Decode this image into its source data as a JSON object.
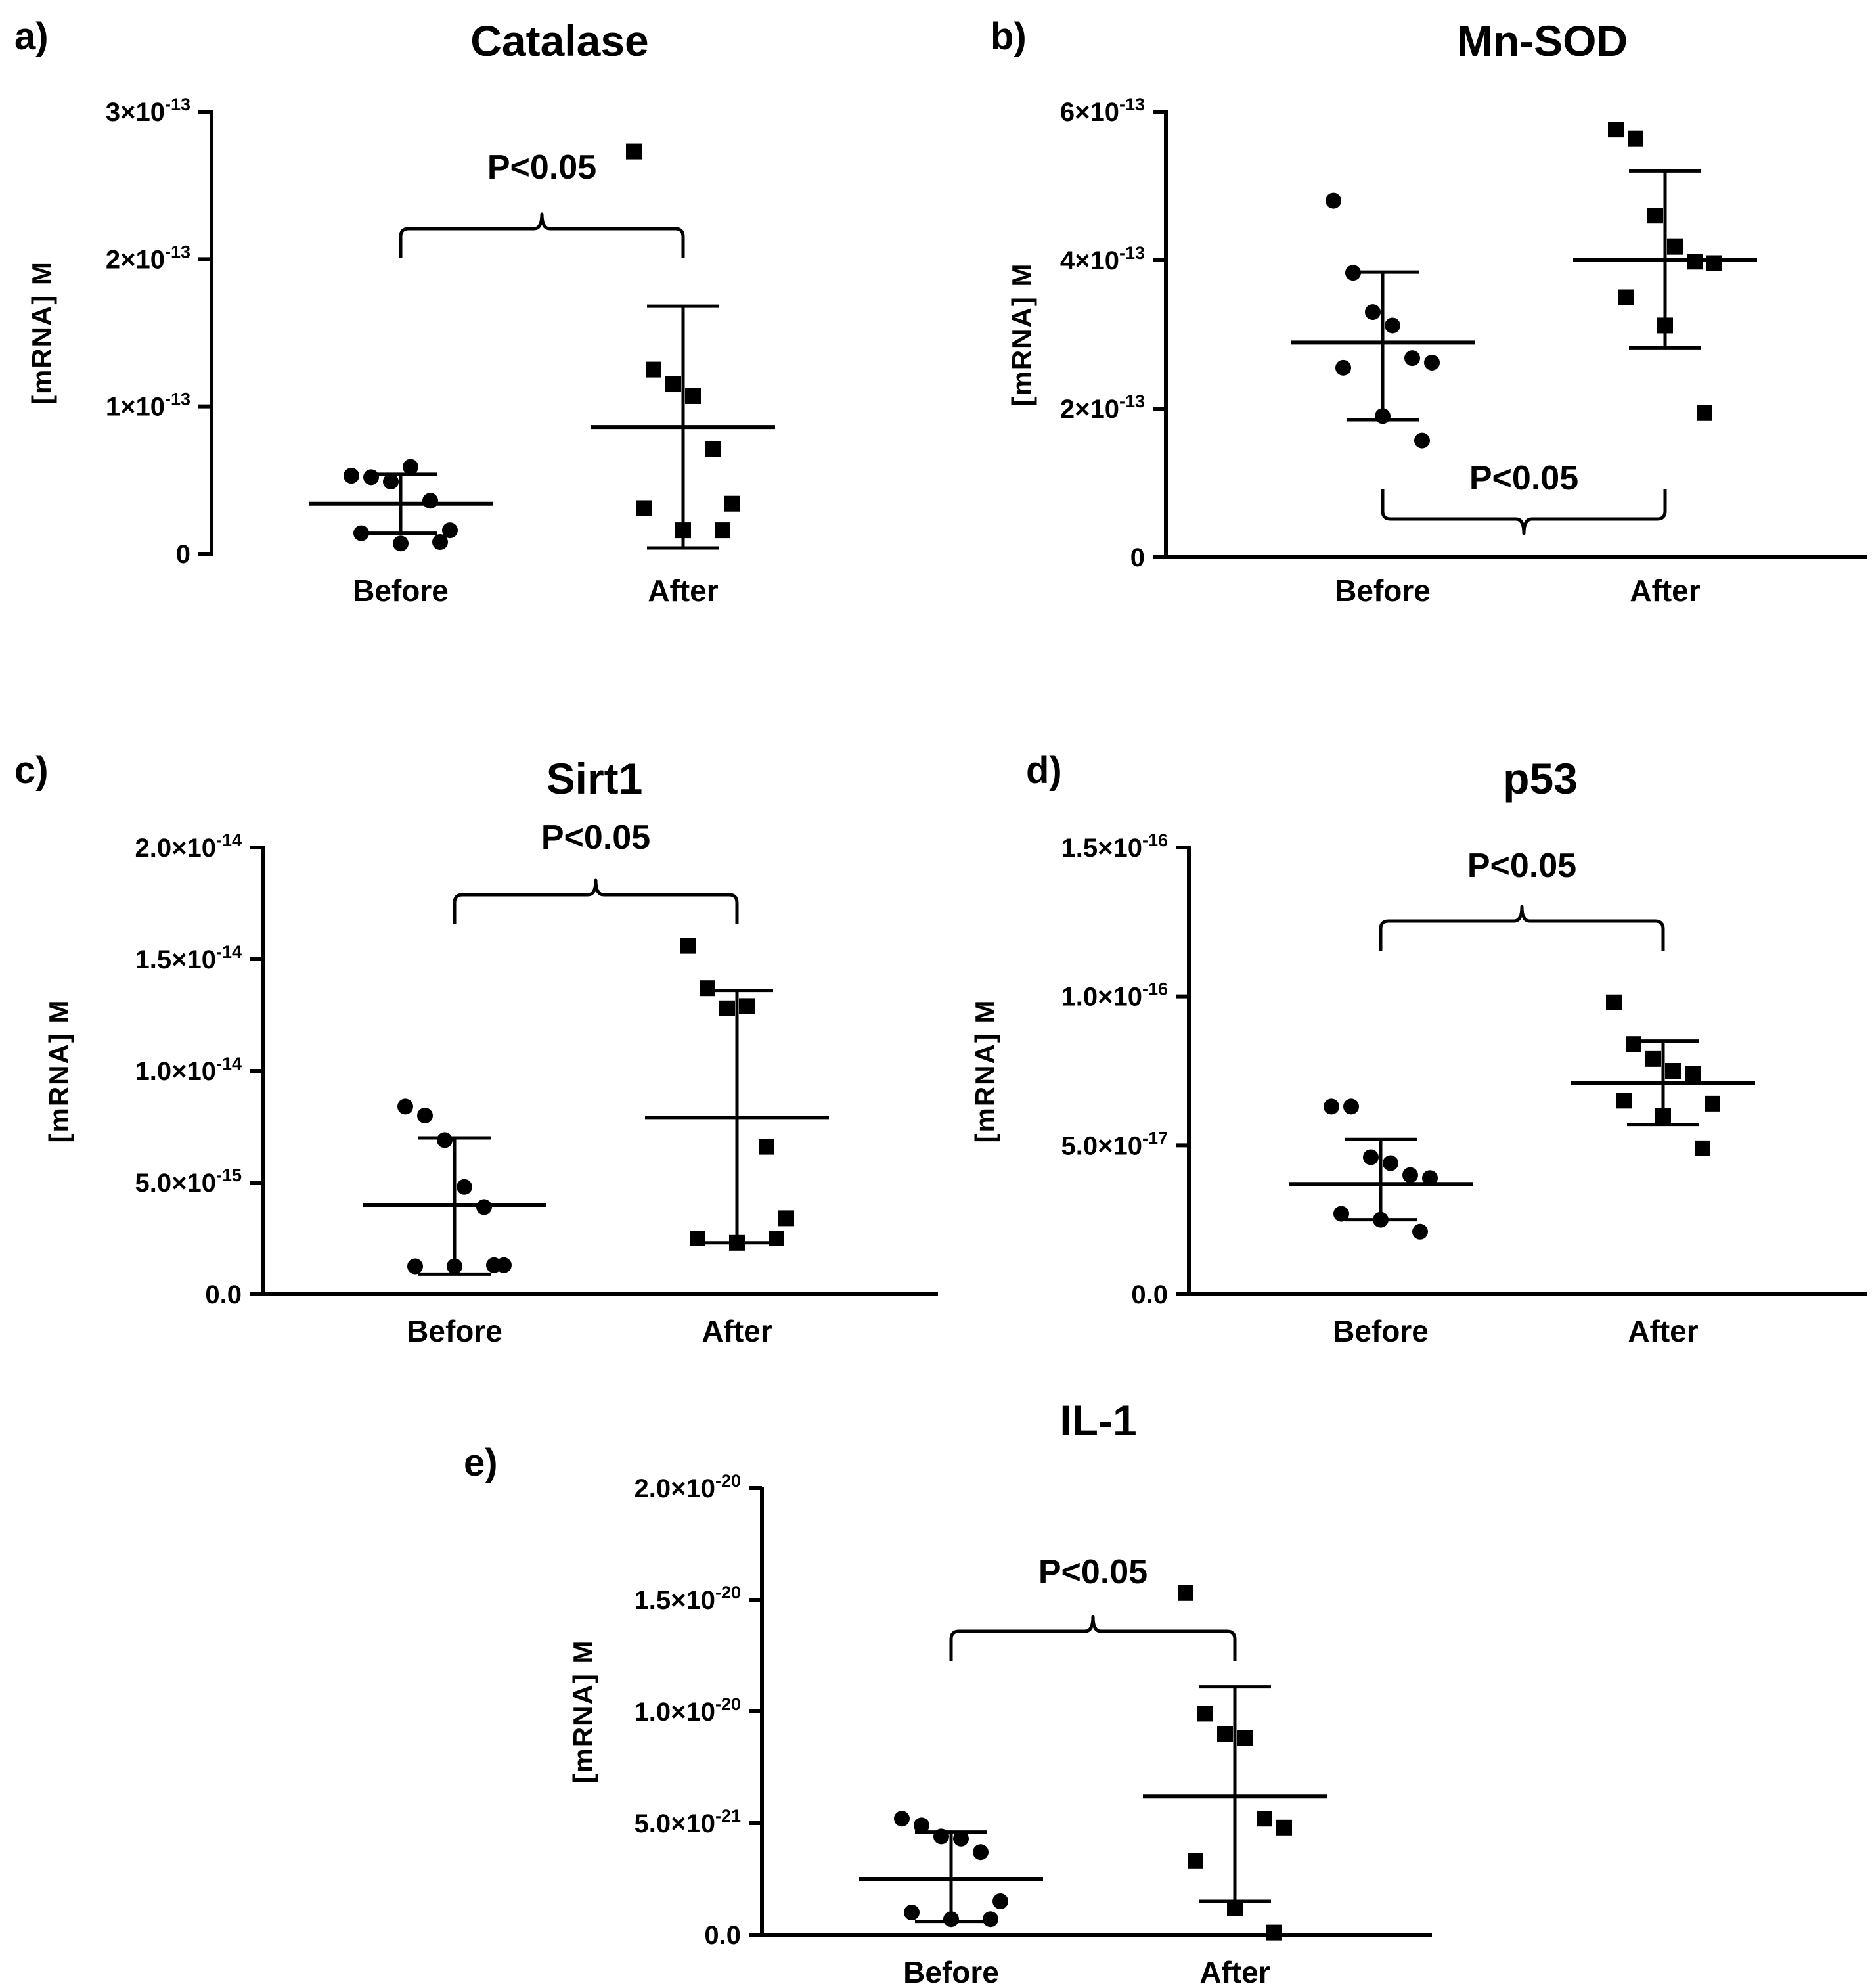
{
  "chart_data": [
    {
      "panel": "a)",
      "type": "scatter",
      "title": "Catalase",
      "ylabel": "[mRNA] M",
      "ylim": [
        0,
        3e-13
      ],
      "y_ticks": [
        {
          "value": 0,
          "mantissa": "0",
          "exp": ""
        },
        {
          "value": 1e-13,
          "mantissa": "1×10",
          "exp": "-13"
        },
        {
          "value": 2e-13,
          "mantissa": "2×10",
          "exp": "-13"
        },
        {
          "value": 3e-13,
          "mantissa": "3×10",
          "exp": "-13"
        }
      ],
      "categories": [
        "Before",
        "After"
      ],
      "significance": {
        "text": "P<0.05",
        "position": "above"
      },
      "series": [
        {
          "name": "Before",
          "marker": "circle",
          "values": [
            5.3e-14,
            5.2e-14,
            4.9e-14,
            5.9e-14,
            3.6e-14,
            1.6e-14,
            1.4e-14,
            7e-15,
            8e-15
          ],
          "mean": 3.4e-14,
          "sd_low": 1.4e-14,
          "sd_high": 5.4e-14
        },
        {
          "name": "After",
          "marker": "square",
          "values": [
            2.73e-13,
            1.25e-13,
            1.15e-13,
            1.07e-13,
            7.1e-14,
            3.4e-14,
            3.1e-14,
            1.6e-14,
            1.6e-14
          ],
          "mean": 8.6e-14,
          "sd_low": 4e-15,
          "sd_high": 1.68e-13
        }
      ]
    },
    {
      "panel": "b)",
      "type": "scatter",
      "title": "Mn-SOD",
      "ylabel": "[mRNA] M",
      "ylim": [
        0,
        6e-13
      ],
      "y_ticks": [
        {
          "value": 0,
          "mantissa": "0",
          "exp": ""
        },
        {
          "value": 2e-13,
          "mantissa": "2×10",
          "exp": "-13"
        },
        {
          "value": 4e-13,
          "mantissa": "4×10",
          "exp": "-13"
        },
        {
          "value": 6e-13,
          "mantissa": "6×10",
          "exp": "-13"
        }
      ],
      "categories": [
        "Before",
        "After"
      ],
      "significance": {
        "text": "P<0.05",
        "position": "below"
      },
      "series": [
        {
          "name": "Before",
          "marker": "circle",
          "values": [
            4.8e-13,
            3.83e-13,
            3.3e-13,
            3.12e-13,
            2.68e-13,
            2.62e-13,
            2.55e-13,
            1.9e-13,
            1.57e-13
          ],
          "mean": 2.89e-13,
          "sd_low": 1.85e-13,
          "sd_high": 3.84e-13
        },
        {
          "name": "After",
          "marker": "square",
          "values": [
            5.76e-13,
            5.64e-13,
            4.6e-13,
            4.18e-13,
            3.98e-13,
            3.96e-13,
            3.5e-13,
            3.12e-13,
            1.94e-13
          ],
          "mean": 4e-13,
          "sd_low": 2.82e-13,
          "sd_high": 5.2e-13
        }
      ]
    },
    {
      "panel": "c)",
      "type": "scatter",
      "title": "Sirt1",
      "ylabel": "[mRNA] M",
      "ylim": [
        0,
        2e-14
      ],
      "y_ticks": [
        {
          "value": 0,
          "mantissa": "0.0",
          "exp": ""
        },
        {
          "value": 5e-15,
          "mantissa": "5.0×10",
          "exp": "-15"
        },
        {
          "value": 1e-14,
          "mantissa": "1.0×10",
          "exp": "-14"
        },
        {
          "value": 1.5e-14,
          "mantissa": "1.5×10",
          "exp": "-14"
        },
        {
          "value": 2e-14,
          "mantissa": "2.0×10",
          "exp": "-14"
        }
      ],
      "categories": [
        "Before",
        "After"
      ],
      "significance": {
        "text": "P<0.05",
        "position": "above"
      },
      "series": [
        {
          "name": "Before",
          "marker": "circle",
          "values": [
            8.4e-15,
            8e-15,
            6.9e-15,
            4.8e-15,
            3.9e-15,
            1.3e-15,
            1.25e-15,
            1.25e-15,
            1.3e-15
          ],
          "mean": 4e-15,
          "sd_low": 9e-16,
          "sd_high": 7e-15
        },
        {
          "name": "After",
          "marker": "square",
          "values": [
            1.56e-14,
            1.37e-14,
            1.28e-14,
            1.29e-14,
            6.6e-15,
            3.4e-15,
            2.5e-15,
            2.3e-15,
            2.5e-15
          ],
          "mean": 7.9e-15,
          "sd_low": 2.3e-15,
          "sd_high": 1.36e-14
        }
      ]
    },
    {
      "panel": "d)",
      "type": "scatter",
      "title": "p53",
      "ylabel": "[mRNA] M",
      "ylim": [
        0,
        1.5e-16
      ],
      "y_ticks": [
        {
          "value": 0,
          "mantissa": "0.0",
          "exp": ""
        },
        {
          "value": 5e-17,
          "mantissa": "5.0×10",
          "exp": "-17"
        },
        {
          "value": 1e-16,
          "mantissa": "1.0×10",
          "exp": "-16"
        },
        {
          "value": 1.5e-16,
          "mantissa": "1.5×10",
          "exp": "-16"
        }
      ],
      "categories": [
        "Before",
        "After"
      ],
      "significance": {
        "text": "P<0.05",
        "position": "above"
      },
      "series": [
        {
          "name": "Before",
          "marker": "circle",
          "values": [
            6.3e-17,
            6.3e-17,
            4.6e-17,
            4.4e-17,
            4e-17,
            3.9e-17,
            2.7e-17,
            2.5e-17,
            2.1e-17
          ],
          "mean": 3.7e-17,
          "sd_low": 2.5e-17,
          "sd_high": 5.2e-17
        },
        {
          "name": "After",
          "marker": "square",
          "values": [
            9.8e-17,
            8.4e-17,
            7.9e-17,
            7.5e-17,
            7.4e-17,
            6.4e-17,
            6.5e-17,
            6e-17,
            4.9e-17
          ],
          "mean": 7.1e-17,
          "sd_low": 5.7e-17,
          "sd_high": 8.5e-17
        }
      ]
    },
    {
      "panel": "e)",
      "type": "scatter",
      "title": "IL-1",
      "ylabel": "[mRNA] M",
      "ylim": [
        0,
        2e-20
      ],
      "y_ticks": [
        {
          "value": 0,
          "mantissa": "0.0",
          "exp": ""
        },
        {
          "value": 5e-21,
          "mantissa": "5.0×10",
          "exp": "-21"
        },
        {
          "value": 1e-20,
          "mantissa": "1.0×10",
          "exp": "-20"
        },
        {
          "value": 1.5e-20,
          "mantissa": "1.5×10",
          "exp": "-20"
        },
        {
          "value": 2e-20,
          "mantissa": "2.0×10",
          "exp": "-20"
        }
      ],
      "categories": [
        "Before",
        "After"
      ],
      "significance": {
        "text": "P<0.05",
        "position": "above"
      },
      "series": [
        {
          "name": "Before",
          "marker": "circle",
          "values": [
            5.2e-21,
            4.9e-21,
            4.4e-21,
            4.3e-21,
            3.7e-21,
            1.5e-21,
            1e-21,
            7e-22,
            7e-22
          ],
          "mean": 2.5e-21,
          "sd_low": 6e-22,
          "sd_high": 4.6e-21
        },
        {
          "name": "After",
          "marker": "square",
          "values": [
            1.53e-20,
            9.9e-21,
            9e-21,
            8.8e-21,
            5.2e-21,
            4.8e-21,
            3.3e-21,
            1.2e-21,
            1e-22
          ],
          "mean": 6.2e-21,
          "sd_low": 1.5e-21,
          "sd_high": 1.11e-20
        }
      ]
    }
  ]
}
